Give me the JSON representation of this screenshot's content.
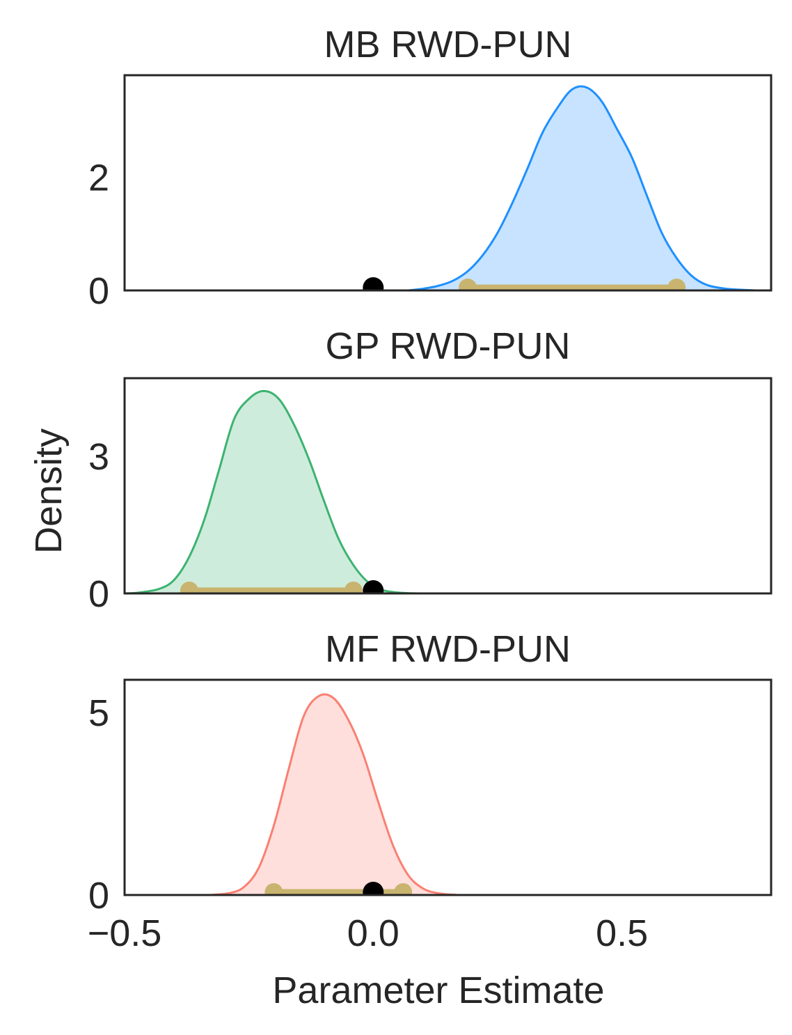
{
  "xlabel": "Parameter Estimate",
  "ylabel": "Density",
  "x_ticks": [
    {
      "value": -0.5,
      "label": "−0.5"
    },
    {
      "value": 0.0,
      "label": "0.0"
    },
    {
      "value": 0.5,
      "label": "0.5"
    }
  ],
  "colors": {
    "axis": "#262626",
    "ci": "#C8B46E",
    "zero_marker": "#000000",
    "mb": "#1E90FF",
    "gp": "#3CB371",
    "mf": "#FA8072"
  },
  "chart_data": [
    {
      "type": "area",
      "title": "MB RWD-PUN",
      "series_color": "#1E90FF",
      "xlim": [
        -0.5,
        0.8
      ],
      "ylim": [
        0,
        3.8
      ],
      "yticks": [
        0,
        2
      ],
      "density": [
        [
          0.07,
          0.0
        ],
        [
          0.1,
          0.03
        ],
        [
          0.13,
          0.08
        ],
        [
          0.16,
          0.17
        ],
        [
          0.19,
          0.34
        ],
        [
          0.22,
          0.62
        ],
        [
          0.25,
          1.02
        ],
        [
          0.28,
          1.55
        ],
        [
          0.31,
          2.15
        ],
        [
          0.34,
          2.78
        ],
        [
          0.37,
          3.22
        ],
        [
          0.4,
          3.55
        ],
        [
          0.43,
          3.58
        ],
        [
          0.46,
          3.33
        ],
        [
          0.49,
          2.85
        ],
        [
          0.52,
          2.35
        ],
        [
          0.55,
          1.68
        ],
        [
          0.58,
          1.02
        ],
        [
          0.61,
          0.57
        ],
        [
          0.64,
          0.26
        ],
        [
          0.67,
          0.1
        ],
        [
          0.71,
          0.03
        ],
        [
          0.77,
          0.0
        ]
      ],
      "ci": [
        0.19,
        0.61
      ],
      "zero": 0.0
    },
    {
      "type": "area",
      "title": "GP RWD-PUN",
      "series_color": "#3CB371",
      "xlim": [
        -0.5,
        0.8
      ],
      "ylim": [
        0,
        4.7
      ],
      "yticks": [
        0,
        3
      ],
      "density": [
        [
          -0.5,
          0.0
        ],
        [
          -0.47,
          0.02
        ],
        [
          -0.43,
          0.1
        ],
        [
          -0.4,
          0.3
        ],
        [
          -0.37,
          0.8
        ],
        [
          -0.34,
          1.6
        ],
        [
          -0.31,
          2.7
        ],
        [
          -0.28,
          3.8
        ],
        [
          -0.25,
          4.25
        ],
        [
          -0.22,
          4.42
        ],
        [
          -0.19,
          4.25
        ],
        [
          -0.16,
          3.7
        ],
        [
          -0.13,
          2.95
        ],
        [
          -0.1,
          2.05
        ],
        [
          -0.07,
          1.2
        ],
        [
          -0.04,
          0.62
        ],
        [
          -0.01,
          0.24
        ],
        [
          0.02,
          0.07
        ],
        [
          0.06,
          0.01
        ],
        [
          0.1,
          0.0
        ]
      ],
      "ci": [
        -0.37,
        -0.04
      ],
      "zero": 0.0
    },
    {
      "type": "area",
      "title": "MF RWD-PUN",
      "series_color": "#FA8072",
      "xlim": [
        -0.5,
        0.8
      ],
      "ylim": [
        0,
        5.9
      ],
      "yticks": [
        0,
        5
      ],
      "density": [
        [
          -0.33,
          0.0
        ],
        [
          -0.29,
          0.05
        ],
        [
          -0.26,
          0.22
        ],
        [
          -0.23,
          0.75
        ],
        [
          -0.2,
          1.9
        ],
        [
          -0.17,
          3.45
        ],
        [
          -0.14,
          4.9
        ],
        [
          -0.11,
          5.45
        ],
        [
          -0.08,
          5.4
        ],
        [
          -0.05,
          4.8
        ],
        [
          -0.02,
          3.85
        ],
        [
          0.01,
          2.55
        ],
        [
          0.04,
          1.35
        ],
        [
          0.07,
          0.55
        ],
        [
          0.1,
          0.18
        ],
        [
          0.13,
          0.05
        ],
        [
          0.17,
          0.0
        ]
      ],
      "ci": [
        -0.2,
        0.06
      ],
      "zero": 0.0
    }
  ]
}
